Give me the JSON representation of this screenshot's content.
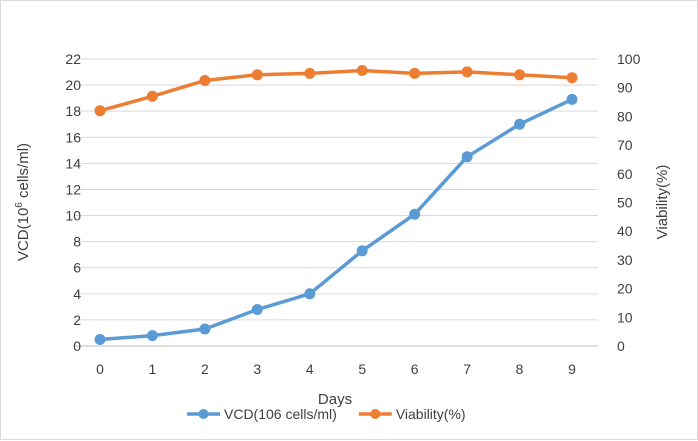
{
  "chart_data": {
    "type": "line",
    "x": [
      0,
      1,
      2,
      3,
      4,
      5,
      6,
      7,
      8,
      9
    ],
    "xlabel": "Days",
    "ylabel_left_prefix": "VCD(10",
    "ylabel_left_sup": "6",
    "ylabel_left_suffix": " cells/ml)",
    "ylabel_right": "Viability(%)",
    "ylim_left": [
      0,
      22
    ],
    "ylim_right": [
      0,
      100
    ],
    "yticks_left": [
      0,
      2,
      4,
      6,
      8,
      10,
      12,
      14,
      16,
      18,
      20,
      22
    ],
    "yticks_right": [
      0,
      10,
      20,
      30,
      40,
      50,
      60,
      70,
      80,
      90,
      100
    ],
    "xticks": [
      0,
      1,
      2,
      3,
      4,
      5,
      6,
      7,
      8,
      9
    ],
    "grid": "horizontal",
    "legend_position": "bottom",
    "series": [
      {
        "name": "VCD(106 cells/ml)",
        "axis": "left",
        "color": "#5b9bd5",
        "values": [
          0.5,
          0.8,
          1.3,
          2.8,
          4.0,
          7.3,
          10.1,
          14.5,
          17.0,
          18.9
        ]
      },
      {
        "name": "Viability(%)",
        "axis": "right",
        "color": "#ed7d31",
        "values": [
          82,
          87,
          92.5,
          94.5,
          95,
          96,
          95,
          95.5,
          94.5,
          93.5
        ]
      }
    ]
  }
}
